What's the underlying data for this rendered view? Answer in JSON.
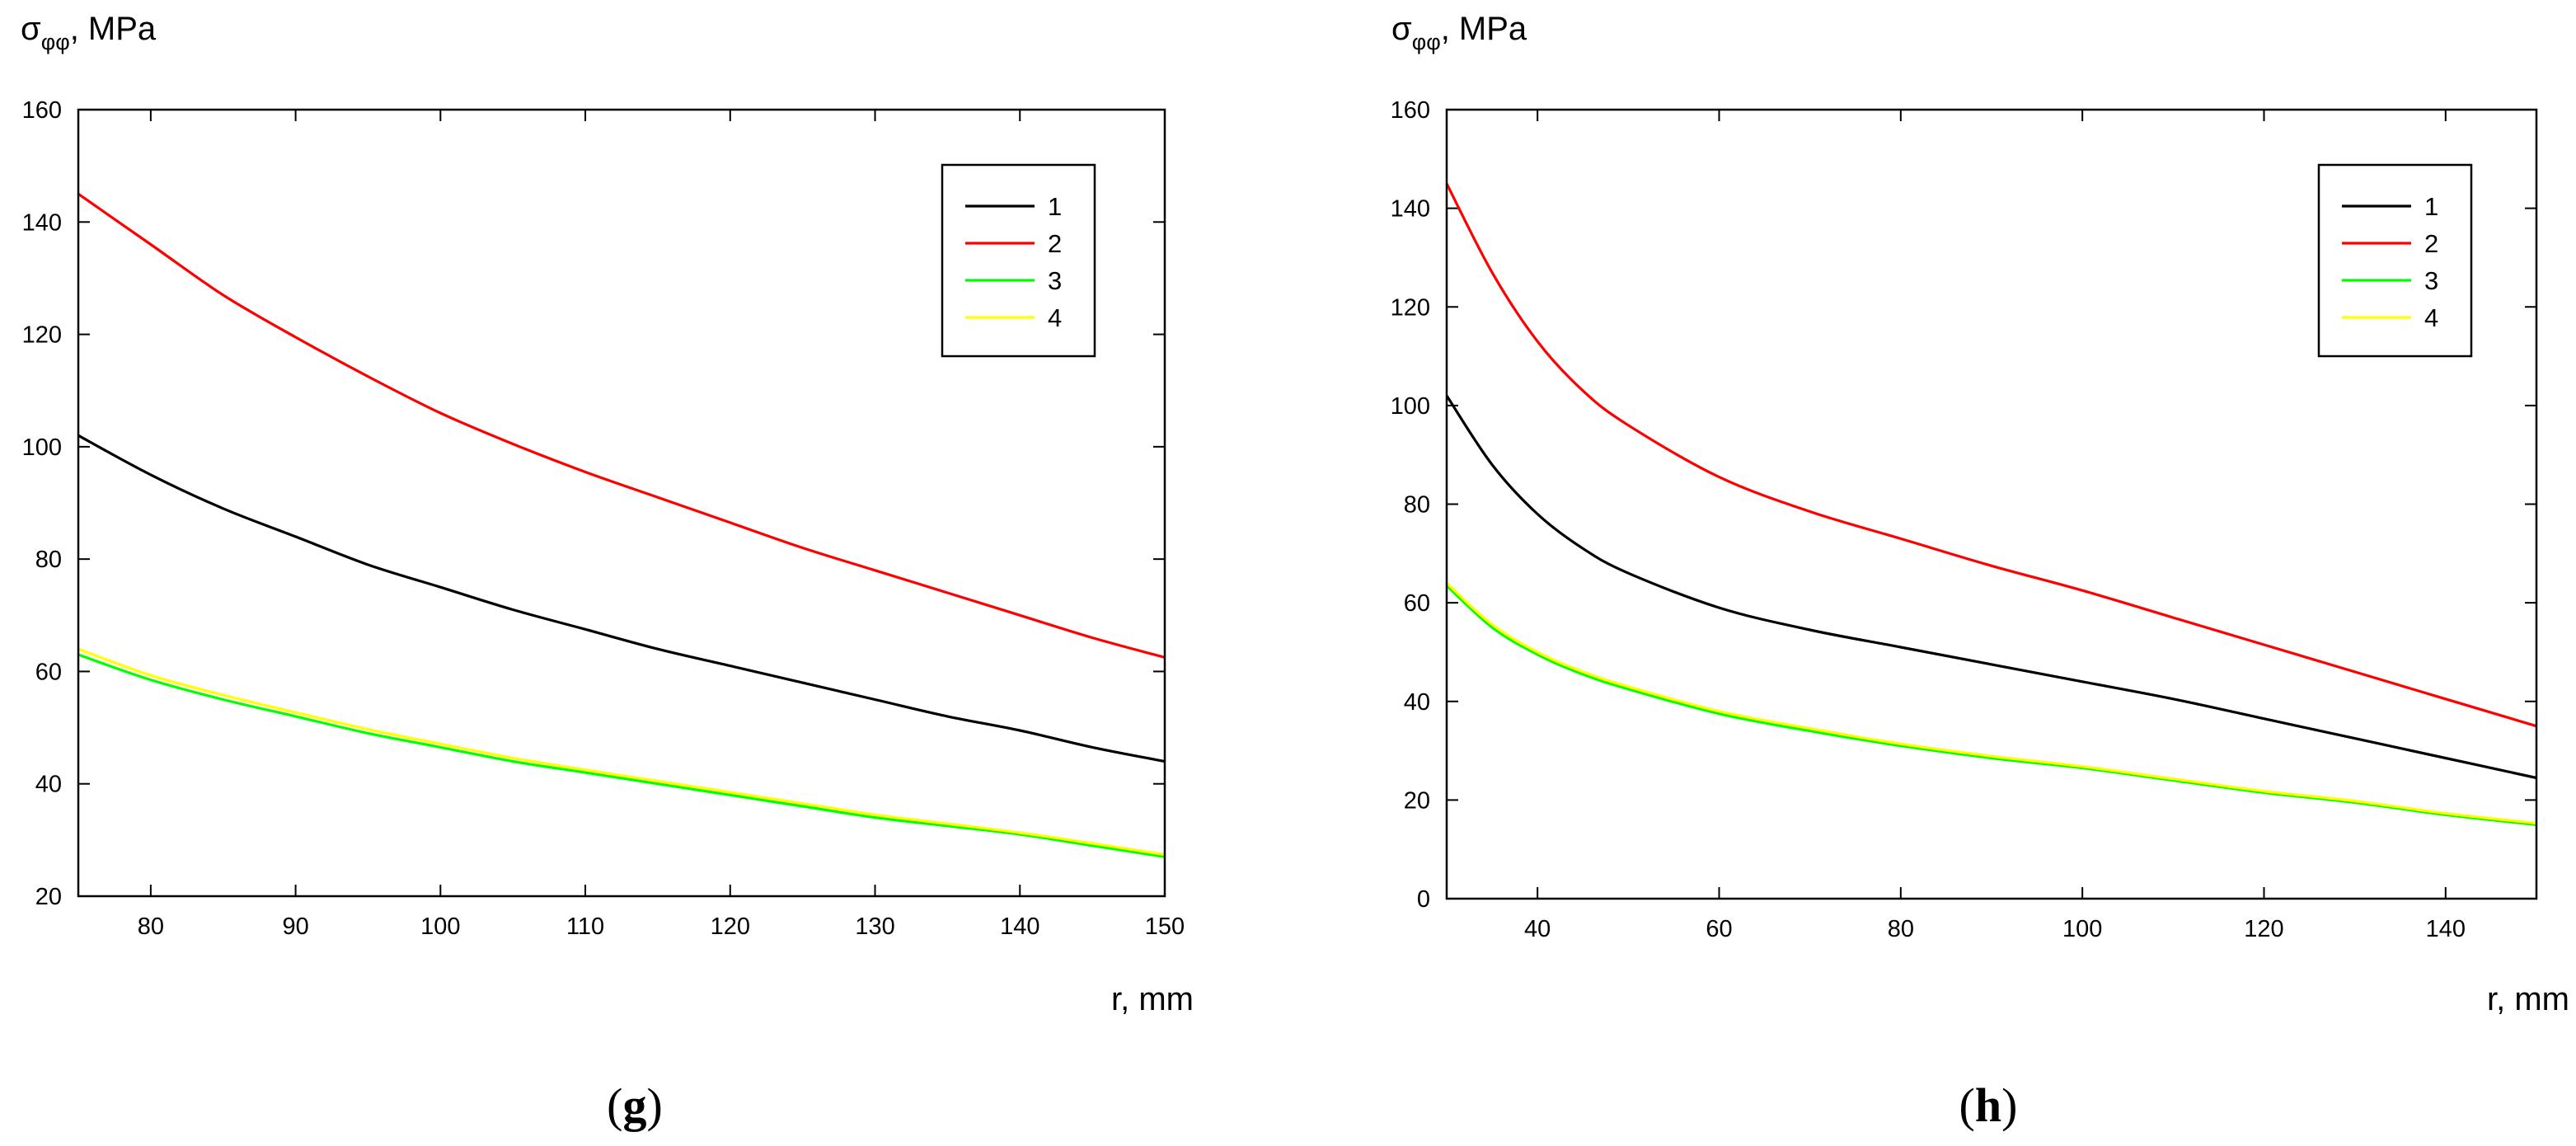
{
  "chart_data": [
    {
      "type": "line",
      "panel_label": "g",
      "ylabel": {
        "main": "σ",
        "sub": "φφ",
        "suffix": ", MPa"
      },
      "xlabel": "r, mm",
      "xlim": [
        75,
        150
      ],
      "ylim": [
        20,
        160
      ],
      "xticks": [
        80,
        90,
        100,
        110,
        120,
        130,
        140,
        150
      ],
      "yticks": [
        20,
        40,
        60,
        80,
        100,
        120,
        140,
        160
      ],
      "grid": false,
      "legend_position": "top-right",
      "series": [
        {
          "name": "1",
          "color": "#000000",
          "x": [
            75,
            80,
            85,
            90,
            95,
            100,
            105,
            110,
            115,
            120,
            125,
            130,
            135,
            140,
            145,
            150
          ],
          "y": [
            102,
            95,
            89,
            84,
            79,
            75,
            71,
            67.5,
            64,
            61,
            58,
            55,
            52,
            49.5,
            46.5,
            44
          ]
        },
        {
          "name": "2",
          "color": "#ff0000",
          "x": [
            75,
            80,
            85,
            90,
            95,
            100,
            105,
            110,
            115,
            120,
            125,
            130,
            135,
            140,
            145,
            150
          ],
          "y": [
            145,
            136,
            127,
            119.5,
            112.5,
            106,
            100.5,
            95.5,
            91,
            86.5,
            82,
            78,
            74,
            70,
            66,
            62.5
          ]
        },
        {
          "name": "3",
          "color": "#00ff00",
          "x": [
            75,
            80,
            85,
            90,
            95,
            100,
            105,
            110,
            115,
            120,
            125,
            130,
            135,
            140,
            145,
            150
          ],
          "y": [
            63,
            58.5,
            55,
            52,
            49,
            46.5,
            44,
            42,
            40,
            38,
            36,
            34,
            32.5,
            31,
            29,
            27
          ]
        },
        {
          "name": "4",
          "color": "#ffff00",
          "x": [
            75,
            80,
            85,
            90,
            95,
            100,
            105,
            110,
            115,
            120,
            125,
            130,
            135,
            140,
            145,
            150
          ],
          "y": [
            64,
            59.3,
            55.8,
            52.7,
            49.7,
            47.1,
            44.6,
            42.5,
            40.5,
            38.5,
            36.5,
            34.5,
            32.9,
            31.3,
            29.4,
            27.4
          ]
        }
      ]
    },
    {
      "type": "line",
      "panel_label": "h",
      "ylabel": {
        "main": "σ",
        "sub": "φφ",
        "suffix": ", MPa"
      },
      "xlabel": "r, mm",
      "xlim": [
        30,
        150
      ],
      "ylim": [
        0,
        160
      ],
      "xticks": [
        40,
        60,
        80,
        100,
        120,
        140
      ],
      "yticks": [
        0,
        20,
        40,
        60,
        80,
        100,
        120,
        140,
        160
      ],
      "grid": false,
      "legend_position": "top-right",
      "series": [
        {
          "name": "1",
          "color": "#000000",
          "x": [
            30,
            35,
            40,
            45,
            50,
            60,
            70,
            80,
            90,
            100,
            110,
            120,
            130,
            140,
            150
          ],
          "y": [
            102,
            88,
            78,
            71,
            66,
            59,
            54.5,
            51,
            47.5,
            44,
            40.5,
            36.5,
            32.5,
            28.5,
            24.5
          ]
        },
        {
          "name": "2",
          "color": "#ff0000",
          "x": [
            30,
            35,
            40,
            45,
            50,
            60,
            70,
            80,
            90,
            100,
            110,
            120,
            130,
            140,
            150
          ],
          "y": [
            145,
            127,
            113,
            103,
            96,
            85.5,
            78.5,
            73,
            67.5,
            62.5,
            57,
            51.5,
            46,
            40.5,
            35
          ]
        },
        {
          "name": "3",
          "color": "#00ff00",
          "x": [
            30,
            35,
            40,
            45,
            50,
            60,
            70,
            80,
            90,
            100,
            110,
            120,
            130,
            140,
            150
          ],
          "y": [
            63.5,
            55,
            49.5,
            45.5,
            42.5,
            37.5,
            34,
            31,
            28.5,
            26.5,
            24,
            21.5,
            19.5,
            17,
            15
          ]
        },
        {
          "name": "4",
          "color": "#ffff00",
          "x": [
            30,
            35,
            40,
            45,
            50,
            60,
            70,
            80,
            90,
            100,
            110,
            120,
            130,
            140,
            150
          ],
          "y": [
            64,
            55.6,
            50,
            46,
            43,
            38,
            34.5,
            31.4,
            28.9,
            26.8,
            24.3,
            21.8,
            19.8,
            17.3,
            15.3
          ]
        }
      ]
    }
  ]
}
